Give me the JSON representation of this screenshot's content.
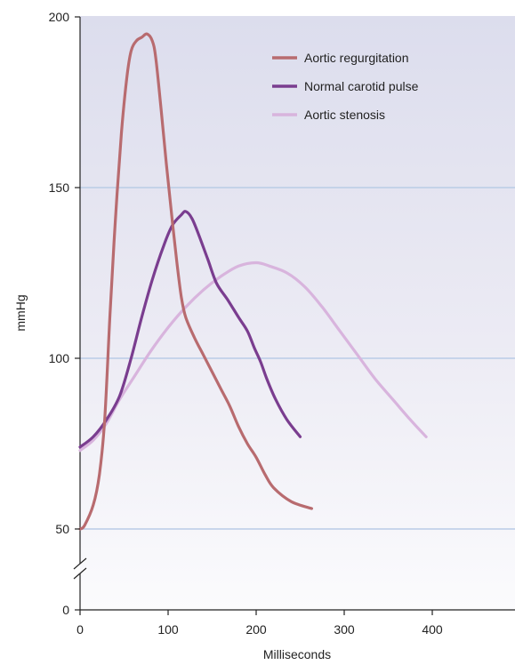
{
  "chart_data": {
    "type": "line",
    "xlabel": "Milliseconds",
    "ylabel": "mmHg",
    "xlim": [
      0,
      490
    ],
    "ylim_lower_segment": [
      0,
      40
    ],
    "ylim_upper_segment": [
      45,
      200
    ],
    "axis_break": true,
    "x_ticks": [
      0,
      100,
      200,
      300,
      400
    ],
    "x_tick_labels": [
      "0",
      "100",
      "200",
      "300",
      "400"
    ],
    "y_ticks": [
      0,
      50,
      100,
      150,
      200
    ],
    "y_tick_labels": [
      "0",
      "50",
      "100",
      "150",
      "200"
    ],
    "grid": "horizontal gridlines at 50, 100, 150",
    "legend_position": "top-right",
    "series": [
      {
        "name": "Aortic regurgitation",
        "color": "#b86b6f",
        "points": [
          [
            0,
            50
          ],
          [
            5,
            51
          ],
          [
            15,
            57
          ],
          [
            22,
            66
          ],
          [
            28,
            82
          ],
          [
            34,
            113
          ],
          [
            40,
            140
          ],
          [
            47,
            166
          ],
          [
            53,
            182
          ],
          [
            58,
            190
          ],
          [
            64,
            193
          ],
          [
            70,
            194
          ],
          [
            76,
            195
          ],
          [
            82,
            193
          ],
          [
            86,
            188
          ],
          [
            92,
            173
          ],
          [
            98,
            157
          ],
          [
            104,
            142
          ],
          [
            110,
            128
          ],
          [
            115,
            118
          ],
          [
            120,
            112
          ],
          [
            130,
            106
          ],
          [
            140,
            101
          ],
          [
            150,
            96
          ],
          [
            160,
            91
          ],
          [
            170,
            86
          ],
          [
            180,
            80
          ],
          [
            190,
            75
          ],
          [
            200,
            71
          ],
          [
            210,
            66
          ],
          [
            220,
            62
          ],
          [
            240,
            58
          ],
          [
            263,
            56
          ]
        ]
      },
      {
        "name": "Normal carotid pulse",
        "color": "#7a3d8f",
        "points": [
          [
            0,
            74
          ],
          [
            15,
            77
          ],
          [
            30,
            82
          ],
          [
            45,
            89
          ],
          [
            58,
            100
          ],
          [
            70,
            112
          ],
          [
            82,
            123
          ],
          [
            95,
            133
          ],
          [
            105,
            139
          ],
          [
            115,
            142
          ],
          [
            120,
            143
          ],
          [
            127,
            141
          ],
          [
            135,
            136
          ],
          [
            145,
            129
          ],
          [
            155,
            122
          ],
          [
            168,
            117
          ],
          [
            180,
            112
          ],
          [
            190,
            108
          ],
          [
            198,
            103
          ],
          [
            205,
            99
          ],
          [
            212,
            94
          ],
          [
            222,
            88
          ],
          [
            235,
            82
          ],
          [
            250,
            77
          ]
        ]
      },
      {
        "name": "Aortic stenosis",
        "color": "#d8b4dd",
        "points": [
          [
            0,
            73
          ],
          [
            15,
            76
          ],
          [
            30,
            81
          ],
          [
            45,
            88
          ],
          [
            60,
            94
          ],
          [
            80,
            102
          ],
          [
            100,
            109
          ],
          [
            120,
            115
          ],
          [
            140,
            120
          ],
          [
            160,
            124
          ],
          [
            180,
            127
          ],
          [
            200,
            128
          ],
          [
            215,
            127
          ],
          [
            235,
            125
          ],
          [
            255,
            121
          ],
          [
            275,
            115
          ],
          [
            295,
            108
          ],
          [
            315,
            101
          ],
          [
            335,
            94
          ],
          [
            355,
            88
          ],
          [
            375,
            82
          ],
          [
            393,
            77
          ]
        ]
      }
    ]
  }
}
